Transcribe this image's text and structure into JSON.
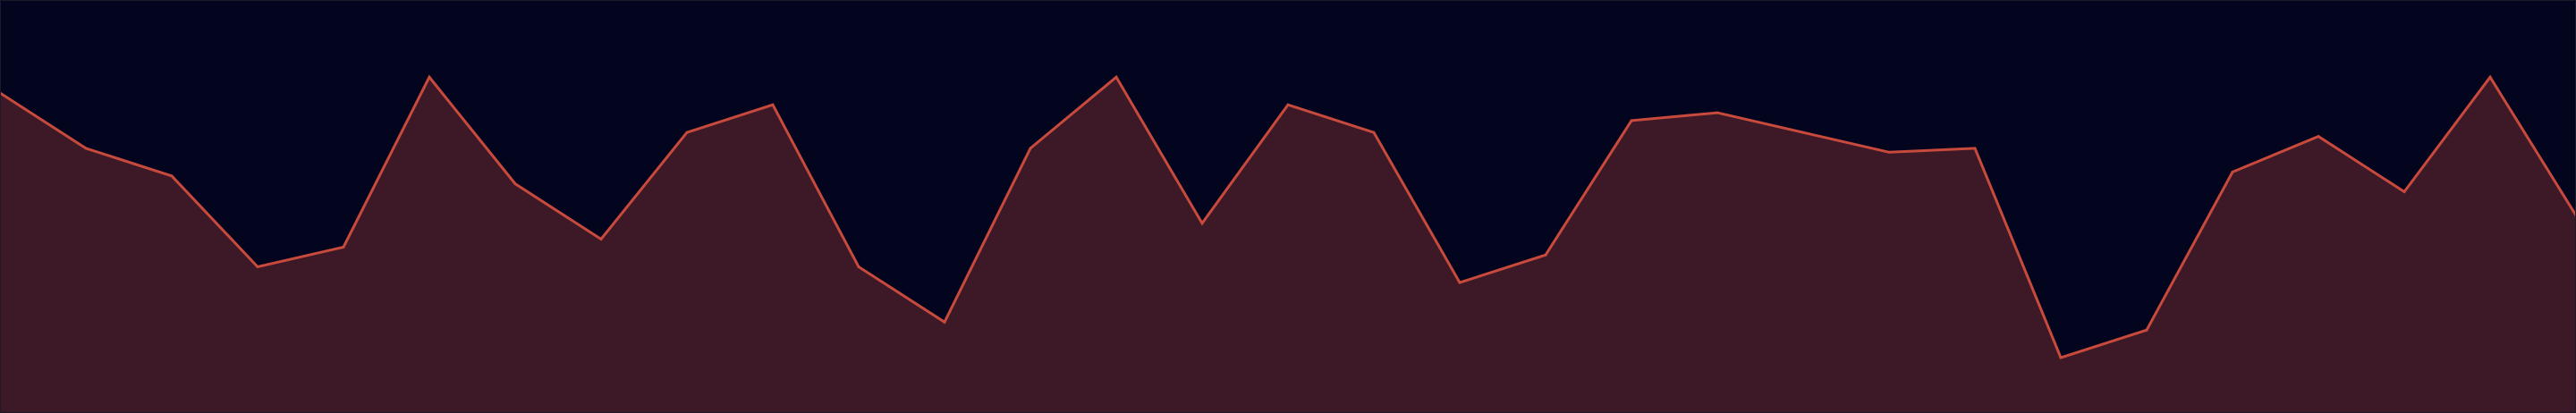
{
  "chart_data": {
    "type": "area",
    "title": "",
    "xlabel": "",
    "ylabel": "",
    "grid": false,
    "legend": "none",
    "x": [
      0,
      1,
      2,
      3,
      4,
      5,
      6,
      7,
      8,
      9,
      10,
      11,
      12,
      13,
      14,
      15,
      16,
      17,
      18,
      19,
      20,
      21,
      22,
      23,
      24,
      25,
      26,
      27,
      28,
      29,
      30
    ],
    "xlim": [
      0,
      30
    ],
    "ylim": [
      0,
      100
    ],
    "series": [
      {
        "values": [
          81,
          67,
          60,
          37,
          42,
          85,
          58,
          44,
          71,
          78,
          37,
          23,
          67,
          85,
          48,
          78,
          71,
          33,
          40,
          74,
          76,
          71,
          66,
          67,
          14,
          21,
          61,
          70,
          56,
          85,
          50
        ]
      }
    ],
    "colors": {
      "background": "#03041d",
      "line": "#c84a3c",
      "fill": "#3d1826",
      "border": "#1a1a2a"
    }
  }
}
